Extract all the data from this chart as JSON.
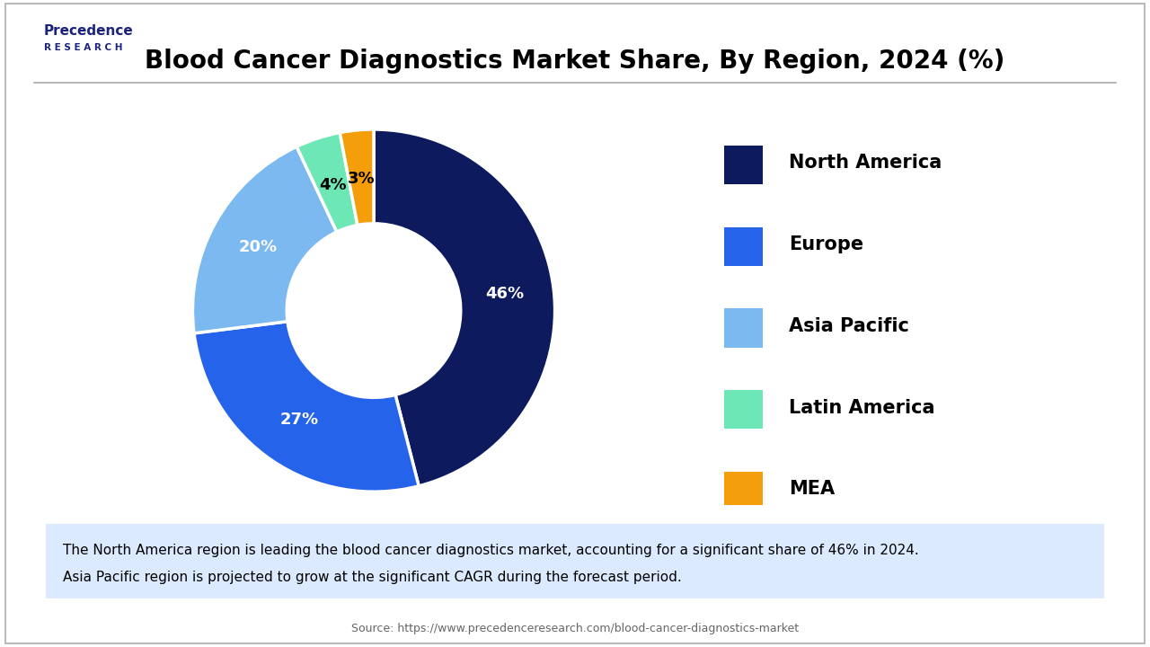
{
  "title": "Blood Cancer Diagnostics Market Share, By Region, 2024 (%)",
  "segments": [
    "North America",
    "Europe",
    "Asia Pacific",
    "Latin America",
    "MEA"
  ],
  "values": [
    46,
    27,
    20,
    4,
    3
  ],
  "colors": [
    "#0d1b5e",
    "#2563eb",
    "#7cb9f0",
    "#6ee7b7",
    "#f59e0b"
  ],
  "labels": [
    "46%",
    "27%",
    "20%",
    "4%",
    "3%"
  ],
  "annotation_line1": "The North America region is leading the blood cancer diagnostics market, accounting for a significant share of 46% in 2024.",
  "annotation_line2": "Asia Pacific region is projected to grow at the significant CAGR during the forecast period.",
  "source_text": "Source: https://www.precedenceresearch.com/blood-cancer-diagnostics-market",
  "background_color": "#ffffff",
  "annotation_bg": "#dbeafe",
  "title_fontsize": 20,
  "legend_fontsize": 15,
  "label_fontsize": 13,
  "annotation_fontsize": 11
}
